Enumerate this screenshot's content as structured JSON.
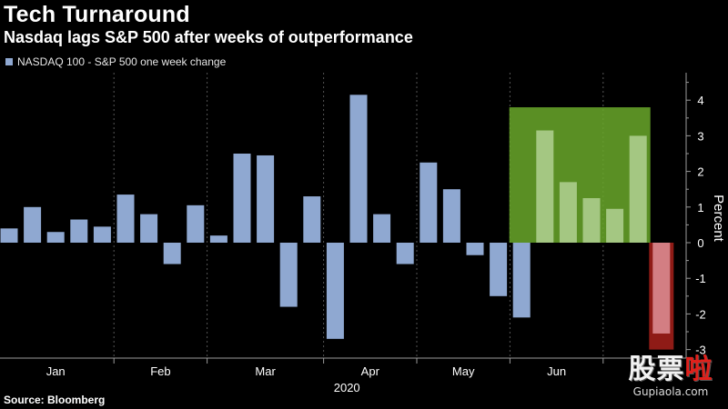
{
  "header": {
    "title": "Tech Turnaround",
    "subtitle": "Nasdaq lags S&P 500 after weeks of outperformance"
  },
  "legend": {
    "label": "NASDAQ 100 - S&P 500 one week change"
  },
  "footer": {
    "source": "Source: Bloomberg"
  },
  "watermark": {
    "chars_white": "股票",
    "chars_red": "啦",
    "url": "Gupiaola.com"
  },
  "colors": {
    "background": "#000000",
    "bar": "#8fa8d1",
    "highlight_positive": "#6aa82a",
    "highlight_negative": "#a8201a",
    "axis": "#9a9a9a",
    "grid": "#555555"
  },
  "chart_data": {
    "type": "bar",
    "title": "Tech Turnaround",
    "subtitle": "Nasdaq lags S&P 500 after weeks of outperformance",
    "ylabel": "Percent",
    "xlabel": "2020",
    "ylim": [
      -3,
      4.5
    ],
    "yticks": [
      -3,
      -2,
      -1,
      0,
      1,
      2,
      3,
      4
    ],
    "grid": true,
    "legend_position": "top-left",
    "month_labels": [
      "Jan",
      "Feb",
      "Mar",
      "Apr",
      "May",
      "Jun"
    ],
    "series": [
      {
        "name": "NASDAQ 100 - S&P 500 one week change",
        "values": [
          0.4,
          1.0,
          0.3,
          0.65,
          0.45,
          1.35,
          0.8,
          -0.6,
          1.05,
          0.2,
          2.5,
          2.45,
          -1.8,
          1.3,
          -2.7,
          4.15,
          0.8,
          -0.6,
          2.25,
          1.5,
          -0.35,
          -1.5,
          -2.1,
          3.15,
          1.7,
          1.25,
          0.95,
          3.0,
          -2.55
        ]
      }
    ],
    "highlights": [
      {
        "type": "positive",
        "from_index": 22,
        "to_index": 27,
        "ylim": [
          0,
          3.8
        ]
      },
      {
        "type": "negative",
        "from_index": 28,
        "to_index": 28,
        "ylim": [
          -3,
          0
        ]
      }
    ]
  }
}
